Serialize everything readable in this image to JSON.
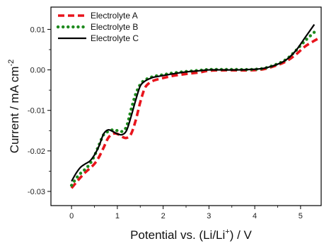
{
  "chart_data": {
    "type": "line",
    "title": "",
    "xlabel": "Potential vs. (Li/Li",
    "xlabel_sup": "+",
    "xlabel_suffix": ") / V",
    "ylabel": "Current / mA cm",
    "ylabel_sup": "-2",
    "xlim": [
      -0.45,
      5.45
    ],
    "ylim": [
      -0.0335,
      0.0155
    ],
    "xticks": [
      0,
      1,
      2,
      3,
      4,
      5
    ],
    "yticks": [
      -0.03,
      -0.02,
      -0.01,
      0.0,
      0.01
    ],
    "xtick_labels": [
      "0",
      "1",
      "2",
      "3",
      "4",
      "5"
    ],
    "ytick_labels": [
      "-0.03",
      "-0.02",
      "-0.01",
      "0.00",
      "0.01"
    ],
    "legend_position": "top-left",
    "grid": false,
    "series": [
      {
        "name": "Electrolyte A",
        "style": "dashed",
        "color": "#e8141c",
        "x": [
          0.0,
          0.1,
          0.2,
          0.3,
          0.4,
          0.5,
          0.6,
          0.7,
          0.8,
          0.9,
          1.0,
          1.1,
          1.2,
          1.3,
          1.4,
          1.5,
          1.6,
          1.7,
          1.8,
          2.0,
          2.2,
          2.5,
          2.8,
          3.0,
          3.3,
          3.6,
          3.9,
          4.2,
          4.5,
          4.7,
          4.9,
          5.1,
          5.3,
          5.4
        ],
        "y": [
          -0.0292,
          -0.0278,
          -0.0265,
          -0.0253,
          -0.0243,
          -0.0232,
          -0.0215,
          -0.0192,
          -0.0168,
          -0.0158,
          -0.0158,
          -0.0165,
          -0.0168,
          -0.0158,
          -0.0125,
          -0.008,
          -0.0045,
          -0.0032,
          -0.0026,
          -0.002,
          -0.0015,
          -0.001,
          -0.0006,
          -0.0002,
          -0.0001,
          -0.0001,
          -0.0001,
          0.0002,
          0.0012,
          0.0022,
          0.0038,
          0.0058,
          0.0072,
          0.0078
        ]
      },
      {
        "name": "Electrolyte B",
        "style": "dotted",
        "color": "#1e8a1e",
        "x": [
          0.0,
          0.1,
          0.2,
          0.3,
          0.4,
          0.5,
          0.6,
          0.7,
          0.8,
          0.9,
          1.0,
          1.1,
          1.2,
          1.3,
          1.4,
          1.5,
          1.6,
          1.7,
          1.8,
          2.0,
          2.2,
          2.5,
          2.8,
          3.0,
          3.3,
          3.6,
          3.9,
          4.2,
          4.5,
          4.7,
          4.9,
          5.1,
          5.3
        ],
        "y": [
          -0.0285,
          -0.0268,
          -0.0255,
          -0.0245,
          -0.0232,
          -0.0212,
          -0.0185,
          -0.016,
          -0.0152,
          -0.0148,
          -0.015,
          -0.0152,
          -0.014,
          -0.0098,
          -0.006,
          -0.0036,
          -0.0025,
          -0.002,
          -0.0016,
          -0.0012,
          -0.0008,
          -0.0004,
          -0.0001,
          0.0001,
          0.0001,
          0.0001,
          0.0001,
          0.0004,
          0.0015,
          0.0027,
          0.0048,
          0.0072,
          0.0093
        ]
      },
      {
        "name": "Electrolyte C",
        "style": "solid",
        "color": "#000000",
        "x": [
          0.0,
          0.1,
          0.2,
          0.3,
          0.4,
          0.5,
          0.6,
          0.7,
          0.8,
          0.9,
          1.0,
          1.1,
          1.2,
          1.3,
          1.4,
          1.5,
          1.6,
          1.7,
          1.8,
          2.0,
          2.2,
          2.5,
          2.8,
          3.0,
          3.3,
          3.6,
          3.9,
          4.2,
          4.5,
          4.7,
          4.9,
          5.1,
          5.3
        ],
        "y": [
          -0.0275,
          -0.0255,
          -0.024,
          -0.0232,
          -0.0225,
          -0.021,
          -0.0188,
          -0.0158,
          -0.0148,
          -0.0152,
          -0.0158,
          -0.016,
          -0.015,
          -0.0115,
          -0.0075,
          -0.004,
          -0.0028,
          -0.0022,
          -0.0018,
          -0.0014,
          -0.001,
          -0.0005,
          -0.0002,
          0.0,
          0.0,
          0.0,
          0.0001,
          0.0004,
          0.0014,
          0.0026,
          0.0048,
          0.008,
          0.0112
        ]
      }
    ]
  }
}
